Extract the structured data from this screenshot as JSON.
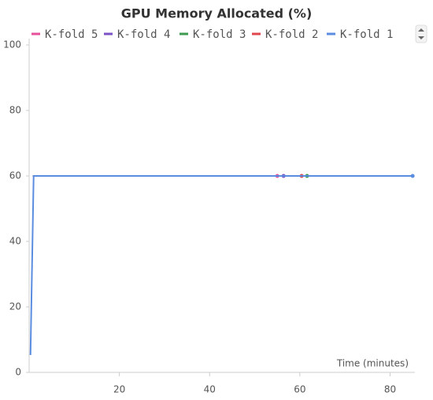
{
  "chart_data": {
    "type": "line",
    "title": "GPU Memory Allocated (%)",
    "x_label": "Time (minutes)",
    "xlim": [
      0,
      85.5
    ],
    "xticks": [
      20,
      40,
      60,
      80
    ],
    "ylim": [
      0,
      100
    ],
    "yticks": [
      0,
      20,
      40,
      60,
      80,
      100
    ],
    "grid": false,
    "legend": "top",
    "series": [
      {
        "name": "K-fold 5",
        "color": "#e6509a",
        "x": [
          0.8,
          55
        ],
        "values": [
          60,
          60
        ]
      },
      {
        "name": "K-fold 4",
        "color": "#7b52c6",
        "x": [
          0.8,
          56.4
        ],
        "values": [
          60,
          60
        ]
      },
      {
        "name": "K-fold 3",
        "color": "#3d9a4e",
        "x": [
          0.8,
          61.6
        ],
        "values": [
          60,
          60
        ]
      },
      {
        "name": "K-fold 2",
        "color": "#e0474c",
        "x": [
          0.8,
          60.4
        ],
        "values": [
          60,
          60
        ]
      },
      {
        "name": "K-fold 1",
        "color": "#5a8de0",
        "x": [
          0.3,
          1,
          85
        ],
        "values": [
          5.3,
          60,
          60
        ]
      }
    ]
  }
}
